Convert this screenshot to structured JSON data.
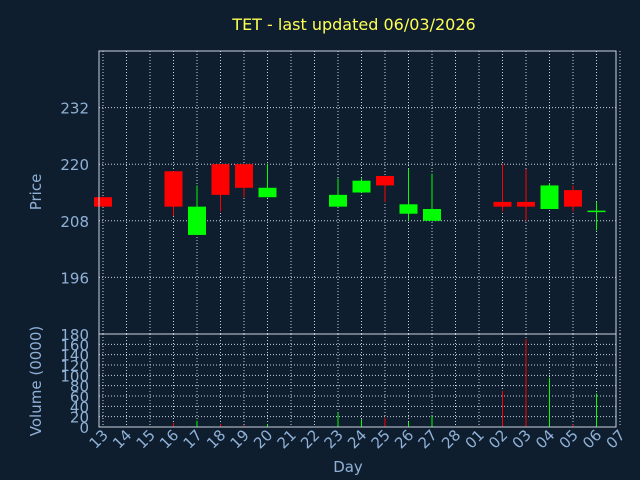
{
  "chart_data": {
    "type": "candlestick",
    "title": "TET - last updated 06/03/2026",
    "xlabel": "Day",
    "price_ylabel": "Price",
    "volume_ylabel": "Volume (0000)",
    "price_ticks": [
      "196",
      "208",
      "220",
      "232"
    ],
    "volume_ticks": [
      "0",
      "20",
      "40",
      "60",
      "80",
      "100",
      "120",
      "140",
      "160",
      "180"
    ],
    "price_ylim": [
      184,
      244
    ],
    "volume_ylim": [
      0,
      180
    ],
    "up_color": "#00ff00",
    "down_color": "#ff0000",
    "x_labels": [
      "13",
      "14",
      "15",
      "16",
      "17",
      "18",
      "19",
      "20",
      "21",
      "22",
      "23",
      "24",
      "25",
      "26",
      "27",
      "28",
      "01",
      "02",
      "03",
      "04",
      "05",
      "06",
      "07"
    ],
    "candles": [
      {
        "day": "13",
        "open": 213,
        "high": 213,
        "low": 211,
        "close": 211,
        "volume": 0
      },
      {
        "day": "16",
        "open": 218.5,
        "high": 218.5,
        "low": 209,
        "close": 211,
        "volume": 8
      },
      {
        "day": "17",
        "open": 205,
        "high": 215.5,
        "low": 205,
        "close": 211,
        "volume": 12
      },
      {
        "day": "18",
        "open": 220,
        "high": 220,
        "low": 210,
        "close": 213.5,
        "volume": 6
      },
      {
        "day": "19",
        "open": 220,
        "high": 220,
        "low": 213,
        "close": 215,
        "volume": 3
      },
      {
        "day": "20",
        "open": 213,
        "high": 220,
        "low": 213,
        "close": 215,
        "volume": 5
      },
      {
        "day": "23",
        "open": 211,
        "high": 217,
        "low": 211,
        "close": 213.5,
        "volume": 28
      },
      {
        "day": "24",
        "open": 214,
        "high": 217,
        "low": 214,
        "close": 216.5,
        "volume": 15
      },
      {
        "day": "25",
        "open": 217.5,
        "high": 217.5,
        "low": 212,
        "close": 215.5,
        "volume": 18
      },
      {
        "day": "26",
        "open": 209.5,
        "high": 219,
        "low": 208,
        "close": 211.5,
        "volume": 10
      },
      {
        "day": "27",
        "open": 208,
        "high": 218,
        "low": 208,
        "close": 210.5,
        "volume": 22
      },
      {
        "day": "02",
        "open": 212,
        "high": 220,
        "low": 210,
        "close": 211,
        "volume": 70
      },
      {
        "day": "03",
        "open": 212,
        "high": 219,
        "low": 208,
        "close": 211,
        "volume": 170
      },
      {
        "day": "04",
        "open": 210.5,
        "high": 216,
        "low": 210.5,
        "close": 215.5,
        "volume": 95
      },
      {
        "day": "05",
        "open": 214.5,
        "high": 215.5,
        "low": 210,
        "close": 211,
        "volume": 5
      },
      {
        "day": "06",
        "open": 210,
        "high": 212,
        "low": 206,
        "close": 210,
        "volume": 65
      }
    ]
  }
}
